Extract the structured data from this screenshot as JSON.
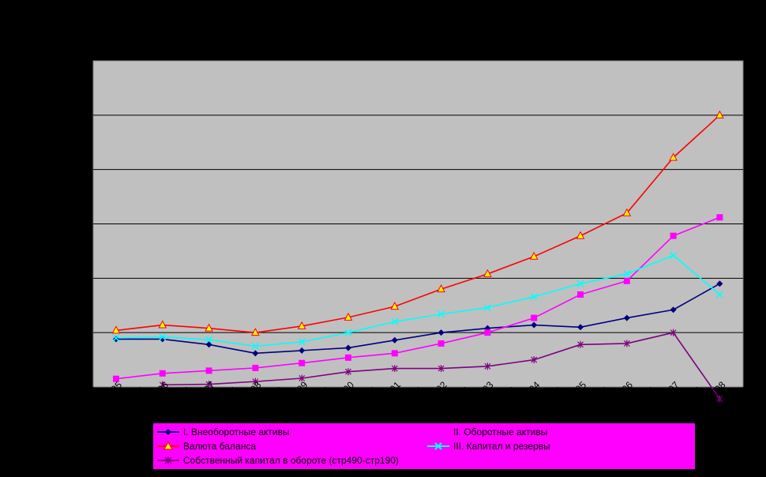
{
  "chart_data": {
    "type": "line",
    "title": "",
    "xlabel": "",
    "ylabel": "",
    "categories": [
      "12.1995",
      "12.1996",
      "12.1997",
      "12.1998",
      "12.1999",
      "12.2000",
      "12.2001",
      "12.2002",
      "12.2003",
      "12.2004",
      "12.2005",
      "12.2006",
      "12.2007",
      "12.2008"
    ],
    "tick_labels": [
      "95",
      "12.1996",
      "12.1997",
      "12.1998",
      "12.1999",
      "12.2000",
      "12.2001",
      "12.2002",
      "12.2003",
      "12.2004",
      "12.2005",
      "12.2006",
      "12.2007",
      "12.2008"
    ],
    "ylim": [
      0,
      6
    ],
    "y_gridlines": [
      0,
      1,
      2,
      3,
      4,
      5,
      6
    ],
    "grid": true,
    "plot_background": "#c0c0c0",
    "legend_position": "bottom",
    "series": [
      {
        "name": "I. Внеоборотные активы",
        "color": "#000080",
        "marker": "diamond",
        "values": [
          0.88,
          0.88,
          0.78,
          0.62,
          0.67,
          0.72,
          0.86,
          1.0,
          1.08,
          1.14,
          1.1,
          1.27,
          1.42,
          1.9
        ]
      },
      {
        "name": "II. Оборотные активы",
        "color": "#ff00ff",
        "marker": "square",
        "values": [
          0.15,
          0.25,
          0.3,
          0.35,
          0.44,
          0.54,
          0.62,
          0.8,
          1.0,
          1.27,
          1.7,
          1.95,
          2.78,
          3.12
        ]
      },
      {
        "name": "Валюта баланса",
        "color": "#ff0000",
        "marker": "triangle",
        "values": [
          1.04,
          1.14,
          1.08,
          1.0,
          1.12,
          1.28,
          1.48,
          1.8,
          2.08,
          2.4,
          2.78,
          3.2,
          4.22,
          5.0
        ]
      },
      {
        "name": "III. Капитал и резервы",
        "color": "#00ffff",
        "marker": "x",
        "values": [
          0.9,
          0.92,
          0.87,
          0.75,
          0.83,
          1.0,
          1.2,
          1.34,
          1.46,
          1.66,
          1.9,
          2.08,
          2.42,
          1.7
        ]
      },
      {
        "name": "Собственный капитал в обороте (стр490-стр190)",
        "color": "#800080",
        "marker": "star",
        "values": [
          null,
          0.04,
          0.05,
          0.1,
          0.16,
          0.28,
          0.34,
          0.34,
          0.38,
          0.5,
          0.78,
          0.8,
          1.0,
          -0.22
        ]
      }
    ]
  }
}
